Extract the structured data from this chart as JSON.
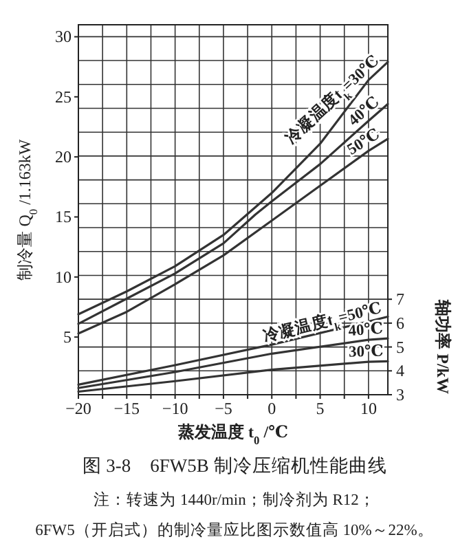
{
  "chart_data": {
    "type": "line",
    "title": "图 3-8　6FW5B 制冷压缩机性能曲线",
    "xlabel": "蒸发温度 t$_{0}$ /℃",
    "ylabel": "制冷量 Q$_{0}$ /1.163kW",
    "y2label": "轴功率 P/kW",
    "annotations": [
      "注：转速为 1440r/min；制冷剂为 R12；",
      "6FW5（开启式）的制冷量应比图示数值高 10%～22%。"
    ],
    "xlim": [
      -20,
      12
    ],
    "xticks": [
      -20,
      {
        "value": -17.5,
        "label": null
      },
      -15,
      {
        "value": -12.5,
        "label": null
      },
      -10,
      {
        "value": -7.5,
        "label": null
      },
      -5,
      {
        "value": -2.5,
        "label": null
      },
      0,
      {
        "value": 2.5,
        "label": null
      },
      5,
      {
        "value": 7.5,
        "label": null
      },
      10
    ],
    "ylim": [
      0.2,
      31
    ],
    "yticks": [
      5,
      10,
      15,
      20,
      25,
      30
    ],
    "y2lim": [
      3,
      18.5
    ],
    "y2ticks": [
      3,
      4,
      5,
      6,
      7,
      {
        "value": 8,
        "label": null
      },
      {
        "value": 9,
        "label": null
      },
      {
        "value": 10,
        "label": null
      },
      {
        "value": 11,
        "label": null
      },
      {
        "value": 12,
        "label": null
      },
      {
        "value": 13,
        "label": null
      },
      {
        "value": 14,
        "label": null
      },
      {
        "value": 15,
        "label": null
      },
      {
        "value": 16,
        "label": null
      },
      {
        "value": 17,
        "label": null
      },
      {
        "value": 18,
        "label": null
      }
    ],
    "grid": true,
    "line_style": "solid",
    "marker": "none",
    "series": [
      {
        "name": "冷凝温度t$_{k}$=30℃",
        "color": "#333333",
        "x": [
          -20,
          -15,
          -10,
          -5,
          0,
          2.2,
          5,
          10,
          12
        ],
        "values": [
          6.9,
          8.8,
          10.9,
          13.5,
          17.0,
          18.8,
          21.1,
          26.4,
          27.9
        ]
      },
      {
        "name": "40℃",
        "color": "#333333",
        "x": [
          -20,
          -15,
          -10,
          -5,
          -1.7,
          0,
          5,
          10,
          12
        ],
        "values": [
          6.1,
          8.2,
          10.3,
          12.8,
          15.2,
          16.3,
          19.4,
          23.0,
          24.4
        ]
      },
      {
        "name": "50℃",
        "color": "#333333",
        "x": [
          -20,
          -15,
          -10,
          -5,
          0,
          5,
          10,
          12
        ],
        "values": [
          5.3,
          7.1,
          9.4,
          11.8,
          14.7,
          17.6,
          20.5,
          21.5
        ]
      },
      {
        "name": "冷凝温度t$_{k}$=50℃",
        "color": "#333333",
        "axis": "y2",
        "x": [
          -20,
          -10,
          0,
          10,
          12
        ],
        "values": [
          3.42,
          4.24,
          5.1,
          6.07,
          6.27
        ]
      },
      {
        "name": "40℃",
        "color": "#333333",
        "axis": "y2",
        "x": [
          -20,
          -10,
          0,
          10,
          12
        ],
        "values": [
          3.28,
          3.95,
          4.72,
          5.3,
          5.36
        ]
      },
      {
        "name": "30℃",
        "color": "#333333",
        "axis": "y2",
        "x": [
          -20,
          -10,
          0,
          10,
          12
        ],
        "values": [
          3.13,
          3.57,
          4.05,
          4.38,
          4.4
        ]
      }
    ]
  }
}
